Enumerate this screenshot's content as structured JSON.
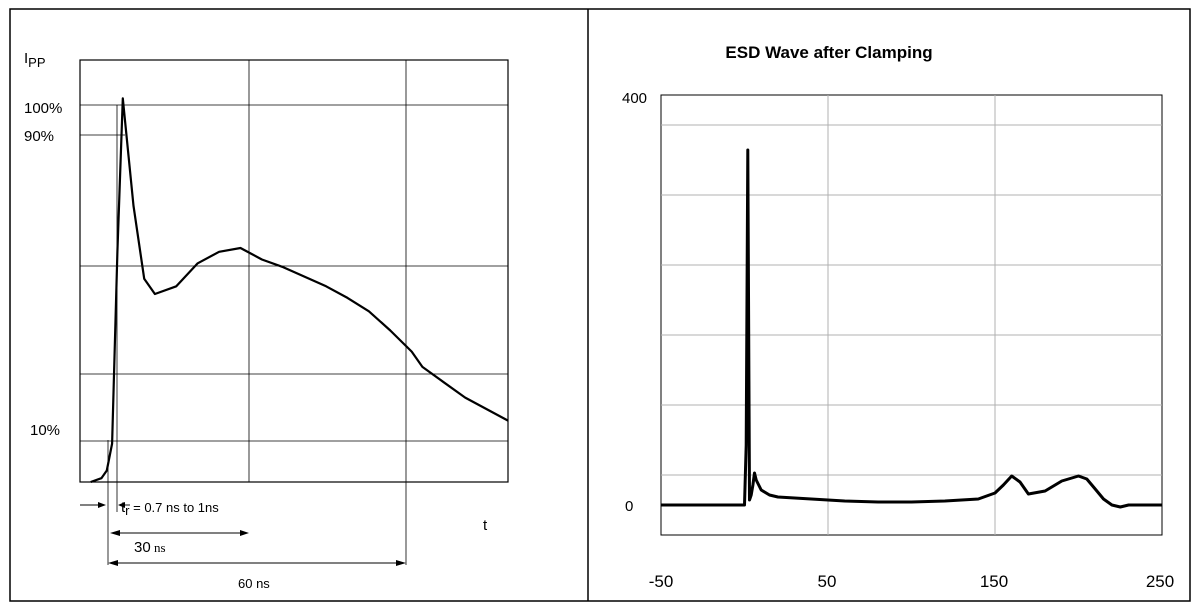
{
  "chart_data": [
    {
      "type": "line",
      "title": "",
      "ylabel": "I",
      "ylabel_sub": "PP",
      "xlabel": "t",
      "y_reference_levels": [
        "100%",
        "90%",
        "10%"
      ],
      "annotations": {
        "rise_time_main": "t",
        "rise_time_sub": "r",
        "rise_time_rest": " = 0.7 ns to 1ns",
        "span_30_value": "30",
        "span_30_unit": " ns",
        "span_60": "60 ns"
      },
      "units": "ns",
      "x": [
        -2,
        0,
        1,
        2,
        3,
        4,
        6,
        8,
        10,
        14,
        18,
        22,
        26,
        30,
        34,
        38,
        42,
        46,
        50,
        54,
        58,
        60,
        64,
        68,
        72,
        76
      ],
      "y": [
        0,
        1,
        3,
        10,
        60,
        100,
        72,
        53,
        49,
        51,
        57,
        60,
        61,
        58,
        56,
        53.5,
        51,
        48,
        44.5,
        39.5,
        34,
        30,
        26,
        22,
        19,
        16
      ],
      "xlim": [
        -4,
        76
      ],
      "ylim": [
        0,
        110
      ]
    },
    {
      "type": "line",
      "title": "ESD Wave after Clamping",
      "xlabel": "",
      "ylabel": "",
      "y_tick_labels": [
        "0",
        "400"
      ],
      "x_tick_labels": [
        "-50",
        "50",
        "150",
        "250"
      ],
      "x": [
        -50,
        0,
        1,
        2,
        3,
        4,
        5,
        6,
        7,
        10,
        15,
        20,
        40,
        60,
        80,
        100,
        120,
        140,
        150,
        155,
        160,
        165,
        170,
        180,
        190,
        200,
        205,
        210,
        215,
        220,
        225,
        230,
        250
      ],
      "y": [
        0,
        0,
        60,
        355,
        5,
        10,
        20,
        32,
        25,
        15,
        10,
        8,
        6,
        4,
        3,
        3,
        4,
        6,
        12,
        20,
        29,
        23,
        11,
        14,
        24,
        29,
        26,
        16,
        6,
        0,
        -2,
        0,
        0
      ],
      "xlim": [
        -50,
        250
      ],
      "ylim": [
        -30,
        410
      ]
    }
  ]
}
